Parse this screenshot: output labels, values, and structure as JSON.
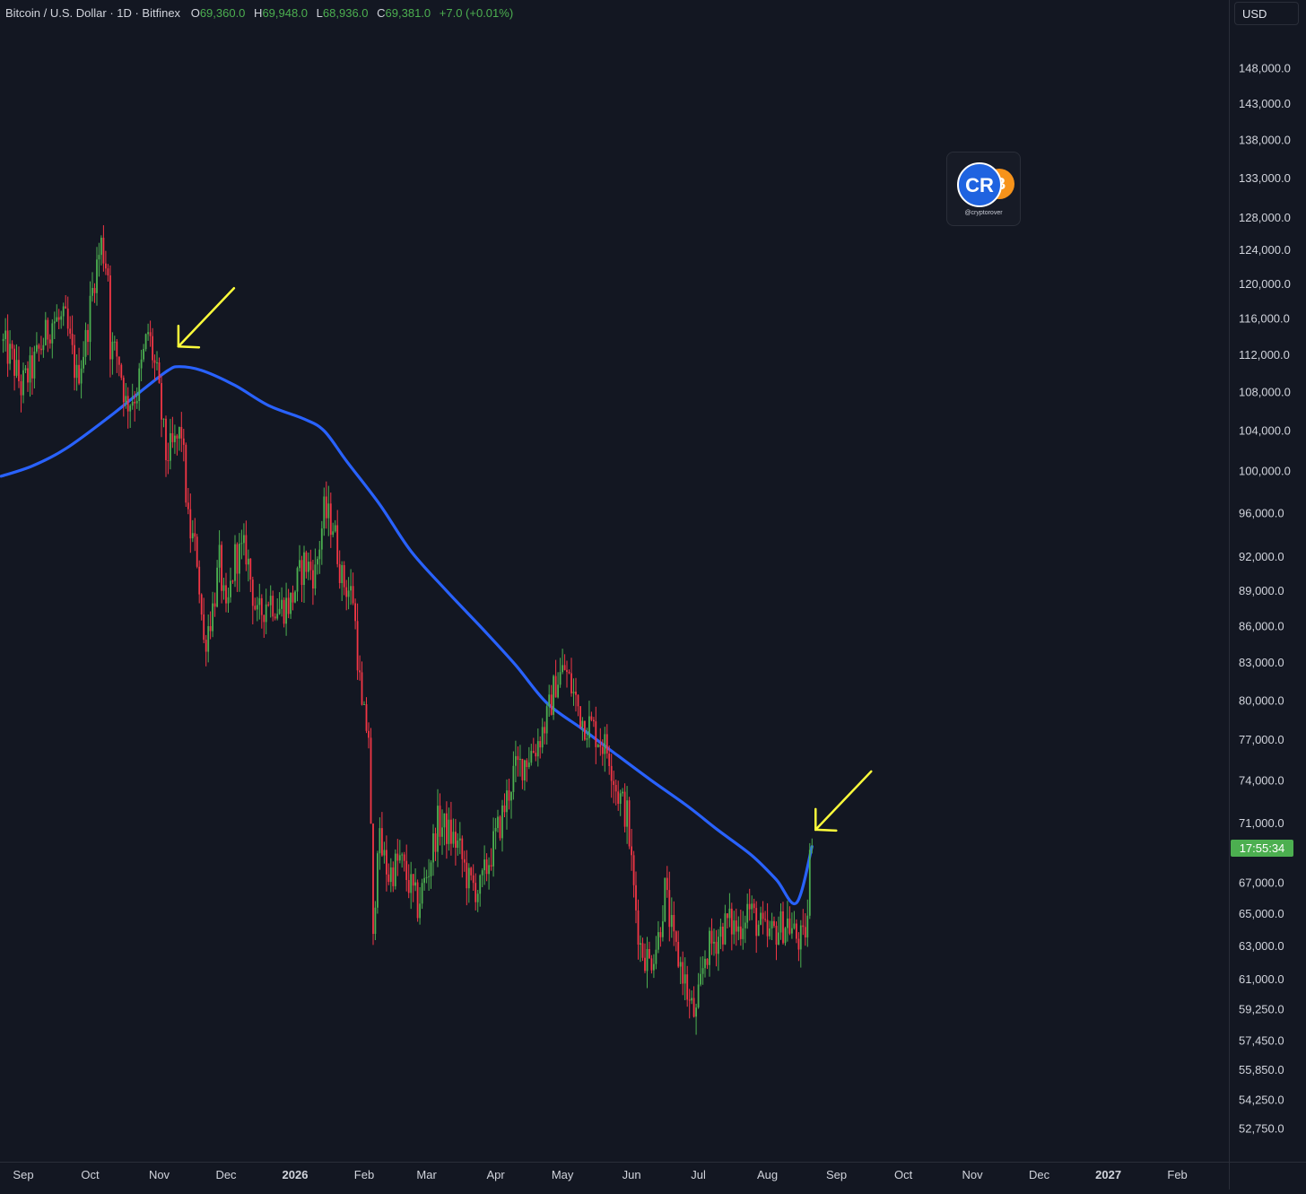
{
  "header": {
    "symbol": "Bitcoin / U.S. Dollar · 1D · Bitfinex",
    "open_key": "O",
    "open": "69,360.0",
    "high_key": "H",
    "high": "69,948.0",
    "low_key": "L",
    "low": "68,936.0",
    "close_key": "C",
    "close": "69,381.0",
    "change": "+7.0 (+0.01%)"
  },
  "currency_button": "USD",
  "watermark": {
    "logo_letters": "CR",
    "handle": "@cryptorover",
    "logo_colors": [
      "#1f63e0",
      "#f7931a"
    ]
  },
  "countdown": "17:55:34",
  "colors": {
    "background": "#131722",
    "up_candle": "#4caf50",
    "down_candle": "#f23645",
    "moving_average": "#2962ff",
    "annotation_arrow": "#ffff3b"
  },
  "chart_data": {
    "type": "candlestick",
    "y_scale": "log",
    "ylim": [
      51500,
      160000
    ],
    "grid": false,
    "y_ticks": [
      {
        "value": 148000,
        "label": "148,000.0"
      },
      {
        "value": 143000,
        "label": "143,000.0"
      },
      {
        "value": 138000,
        "label": "138,000.0"
      },
      {
        "value": 133000,
        "label": "133,000.0"
      },
      {
        "value": 128000,
        "label": "128,000.0"
      },
      {
        "value": 124000,
        "label": "124,000.0"
      },
      {
        "value": 120000,
        "label": "120,000.0"
      },
      {
        "value": 116000,
        "label": "116,000.0"
      },
      {
        "value": 112000,
        "label": "112,000.0"
      },
      {
        "value": 108000,
        "label": "108,000.0"
      },
      {
        "value": 104000,
        "label": "104,000.0"
      },
      {
        "value": 100000,
        "label": "100,000.0"
      },
      {
        "value": 96000,
        "label": "96,000.0"
      },
      {
        "value": 92000,
        "label": "92,000.0"
      },
      {
        "value": 89000,
        "label": "89,000.0"
      },
      {
        "value": 86000,
        "label": "86,000.0"
      },
      {
        "value": 83000,
        "label": "83,000.0"
      },
      {
        "value": 80000,
        "label": "80,000.0"
      },
      {
        "value": 77000,
        "label": "77,000.0"
      },
      {
        "value": 74000,
        "label": "74,000.0"
      },
      {
        "value": 71000,
        "label": "71,000.0"
      },
      {
        "value": 67000,
        "label": "67,000.0"
      },
      {
        "value": 65000,
        "label": "65,000.0"
      },
      {
        "value": 63000,
        "label": "63,000.0"
      },
      {
        "value": 61000,
        "label": "61,000.0"
      },
      {
        "value": 59250,
        "label": "59,250.0"
      },
      {
        "value": 57450,
        "label": "57,450.0"
      },
      {
        "value": 55850,
        "label": "55,850.0"
      },
      {
        "value": 54250,
        "label": "54,250.0"
      },
      {
        "value": 52750,
        "label": "52,750.0"
      }
    ],
    "x_ticks": [
      {
        "date": "2025-09-01",
        "label": "Sep"
      },
      {
        "date": "2025-10-01",
        "label": "Oct"
      },
      {
        "date": "2025-11-01",
        "label": "Nov"
      },
      {
        "date": "2025-12-01",
        "label": "Dec"
      },
      {
        "date": "2026-01-01",
        "label": "2026",
        "bold": true
      },
      {
        "date": "2026-02-01",
        "label": "Feb"
      },
      {
        "date": "2026-03-01",
        "label": "Mar"
      },
      {
        "date": "2026-04-01",
        "label": "Apr"
      },
      {
        "date": "2026-05-01",
        "label": "May"
      },
      {
        "date": "2026-06-01",
        "label": "Jun"
      },
      {
        "date": "2026-07-01",
        "label": "Jul"
      },
      {
        "date": "2026-08-01",
        "label": "Aug"
      },
      {
        "date": "2026-09-01",
        "label": "Sep"
      },
      {
        "date": "2026-10-01",
        "label": "Oct"
      },
      {
        "date": "2026-11-01",
        "label": "Nov"
      },
      {
        "date": "2026-12-01",
        "label": "Dec"
      },
      {
        "date": "2027-01-01",
        "label": "2027",
        "bold": true
      },
      {
        "date": "2027-02-01",
        "label": "Feb"
      }
    ],
    "close_path": [
      [
        "2025-08-22",
        113500
      ],
      [
        "2025-08-27",
        111500
      ],
      [
        "2025-08-31",
        108500
      ],
      [
        "2025-09-05",
        110500
      ],
      [
        "2025-09-10",
        113500
      ],
      [
        "2025-09-14",
        115800
      ],
      [
        "2025-09-20",
        115500
      ],
      [
        "2025-09-25",
        109500
      ],
      [
        "2025-09-29",
        113500
      ],
      [
        "2025-10-03",
        121000
      ],
      [
        "2025-10-06",
        124700
      ],
      [
        "2025-10-09",
        121500
      ],
      [
        "2025-10-10",
        113000
      ],
      [
        "2025-10-14",
        111500
      ],
      [
        "2025-10-17",
        106800
      ],
      [
        "2025-10-22",
        108000
      ],
      [
        "2025-10-27",
        114500
      ],
      [
        "2025-10-31",
        109500
      ],
      [
        "2025-11-04",
        101500
      ],
      [
        "2025-11-08",
        102500
      ],
      [
        "2025-11-11",
        104000
      ],
      [
        "2025-11-14",
        95000
      ],
      [
        "2025-11-18",
        92000
      ],
      [
        "2025-11-21",
        84500
      ],
      [
        "2025-11-25",
        87500
      ],
      [
        "2025-11-28",
        91500
      ],
      [
        "2025-12-01",
        86500
      ],
      [
        "2025-12-05",
        92000
      ],
      [
        "2025-12-10",
        92500
      ],
      [
        "2025-12-15",
        86500
      ],
      [
        "2025-12-20",
        88500
      ],
      [
        "2025-12-25",
        87500
      ],
      [
        "2025-12-30",
        88000
      ],
      [
        "2026-01-05",
        91500
      ],
      [
        "2026-01-10",
        90500
      ],
      [
        "2026-01-14",
        96000
      ],
      [
        "2026-01-18",
        95000
      ],
      [
        "2026-01-22",
        90000
      ],
      [
        "2026-01-27",
        88500
      ],
      [
        "2026-01-31",
        79000
      ],
      [
        "2026-02-03",
        77500
      ],
      [
        "2026-02-05",
        63000
      ],
      [
        "2026-02-07",
        70000
      ],
      [
        "2026-02-12",
        67500
      ],
      [
        "2026-02-17",
        68500
      ],
      [
        "2026-02-21",
        67000
      ],
      [
        "2026-02-25",
        65500
      ],
      [
        "2026-03-02",
        68000
      ],
      [
        "2026-03-06",
        71000
      ],
      [
        "2026-03-10",
        70500
      ],
      [
        "2026-03-15",
        69500
      ],
      [
        "2026-03-20",
        67000
      ],
      [
        "2026-03-25",
        66500
      ],
      [
        "2026-03-30",
        69000
      ],
      [
        "2026-04-04",
        71500
      ],
      [
        "2026-04-09",
        74500
      ],
      [
        "2026-04-14",
        75500
      ],
      [
        "2026-04-19",
        76500
      ],
      [
        "2026-04-24",
        78500
      ],
      [
        "2026-04-28",
        81500
      ],
      [
        "2026-05-02",
        82500
      ],
      [
        "2026-05-06",
        80500
      ],
      [
        "2026-05-10",
        78500
      ],
      [
        "2026-05-14",
        78000
      ],
      [
        "2026-05-18",
        77000
      ],
      [
        "2026-05-22",
        76000
      ],
      [
        "2026-05-25",
        73500
      ],
      [
        "2026-05-30",
        71500
      ],
      [
        "2026-06-02",
        66500
      ],
      [
        "2026-06-05",
        63000
      ],
      [
        "2026-06-09",
        62000
      ],
      [
        "2026-06-13",
        63500
      ],
      [
        "2026-06-16",
        66500
      ],
      [
        "2026-06-20",
        63000
      ],
      [
        "2026-06-24",
        61500
      ],
      [
        "2026-06-27",
        59500
      ],
      [
        "2026-06-30",
        58800
      ],
      [
        "2026-07-04",
        62500
      ],
      [
        "2026-07-09",
        63500
      ],
      [
        "2026-07-14",
        64500
      ],
      [
        "2026-07-19",
        64000
      ],
      [
        "2026-07-23",
        65500
      ],
      [
        "2026-07-27",
        64500
      ],
      [
        "2026-08-01",
        63500
      ],
      [
        "2026-08-05",
        64000
      ],
      [
        "2026-08-10",
        64500
      ],
      [
        "2026-08-14",
        63500
      ],
      [
        "2026-08-17",
        63200
      ],
      [
        "2026-08-19",
        64800
      ],
      [
        "2026-08-20",
        68500
      ]
    ],
    "last_candle": {
      "date": "2026-08-21",
      "open": 69360,
      "high": 69948,
      "low": 68936,
      "close": 69381
    },
    "moving_average": [
      [
        "2025-08-22",
        99500
      ],
      [
        "2025-09-05",
        100500
      ],
      [
        "2025-09-20",
        102200
      ],
      [
        "2025-10-10",
        105500
      ],
      [
        "2025-10-25",
        108300
      ],
      [
        "2025-11-05",
        110300
      ],
      [
        "2025-11-10",
        110700
      ],
      [
        "2025-11-20",
        110300
      ],
      [
        "2025-12-05",
        108700
      ],
      [
        "2025-12-20",
        106600
      ],
      [
        "2026-01-05",
        105200
      ],
      [
        "2026-01-14",
        104000
      ],
      [
        "2026-01-24",
        101000
      ],
      [
        "2026-02-08",
        96800
      ],
      [
        "2026-02-22",
        92500
      ],
      [
        "2026-03-10",
        89000
      ],
      [
        "2026-03-26",
        85800
      ],
      [
        "2026-04-10",
        82800
      ],
      [
        "2026-04-24",
        79800
      ],
      [
        "2026-05-10",
        77800
      ],
      [
        "2026-05-26",
        75800
      ],
      [
        "2026-06-10",
        74000
      ],
      [
        "2026-06-26",
        72200
      ],
      [
        "2026-07-10",
        70500
      ],
      [
        "2026-07-25",
        68800
      ],
      [
        "2026-08-05",
        67200
      ],
      [
        "2026-08-14",
        65700
      ],
      [
        "2026-08-21",
        69400
      ]
    ],
    "annotations": [
      {
        "type": "arrow",
        "direction": "down-left",
        "date": "2025-11-08",
        "price": 112500
      },
      {
        "type": "arrow",
        "direction": "down-left",
        "date": "2026-08-21",
        "price": 70300
      }
    ]
  }
}
